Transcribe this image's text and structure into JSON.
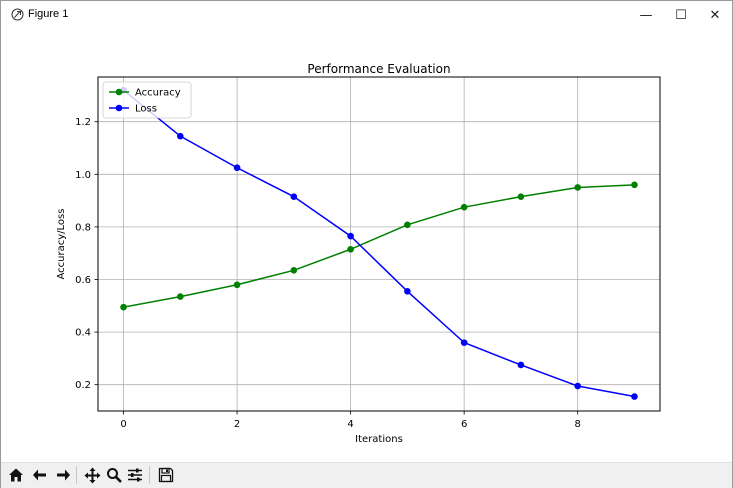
{
  "window": {
    "title": "Figure 1",
    "minimize_glyph": "—",
    "maximize_glyph": "☐",
    "close_glyph": "✕"
  },
  "toolbar": {
    "buttons": [
      {
        "name": "home-icon"
      },
      {
        "name": "back-arrow-icon"
      },
      {
        "name": "forward-arrow-icon"
      },
      {
        "name": "pan-icon"
      },
      {
        "name": "zoom-icon"
      },
      {
        "name": "configure-subplots-icon"
      },
      {
        "name": "save-icon"
      }
    ]
  },
  "chart_data": {
    "type": "line",
    "title": "Performance Evaluation",
    "xlabel": "Iterations",
    "ylabel": "Accuracy/Loss",
    "x": [
      0,
      1,
      2,
      3,
      4,
      5,
      6,
      7,
      8,
      9
    ],
    "series": [
      {
        "name": "Accuracy",
        "color": "#008000",
        "values": [
          0.495,
          0.535,
          0.58,
          0.635,
          0.715,
          0.808,
          0.875,
          0.915,
          0.95,
          0.96
        ]
      },
      {
        "name": "Loss",
        "color": "#0000ff",
        "values": [
          1.32,
          1.145,
          1.025,
          0.915,
          0.765,
          0.555,
          0.36,
          0.275,
          0.195,
          0.155
        ]
      }
    ],
    "xlim": [
      -0.45,
      9.45
    ],
    "ylim": [
      0.1,
      1.37
    ],
    "xticks": [
      0,
      2,
      4,
      6,
      8
    ],
    "yticks": [
      0.2,
      0.4,
      0.6,
      0.8,
      1.0,
      1.2
    ],
    "xtick_labels": [
      "0",
      "2",
      "4",
      "6",
      "8"
    ],
    "ytick_labels": [
      "0.2",
      "0.4",
      "0.6",
      "0.8",
      "1.0",
      "1.2"
    ],
    "grid": true,
    "legend_position": "upper left"
  }
}
